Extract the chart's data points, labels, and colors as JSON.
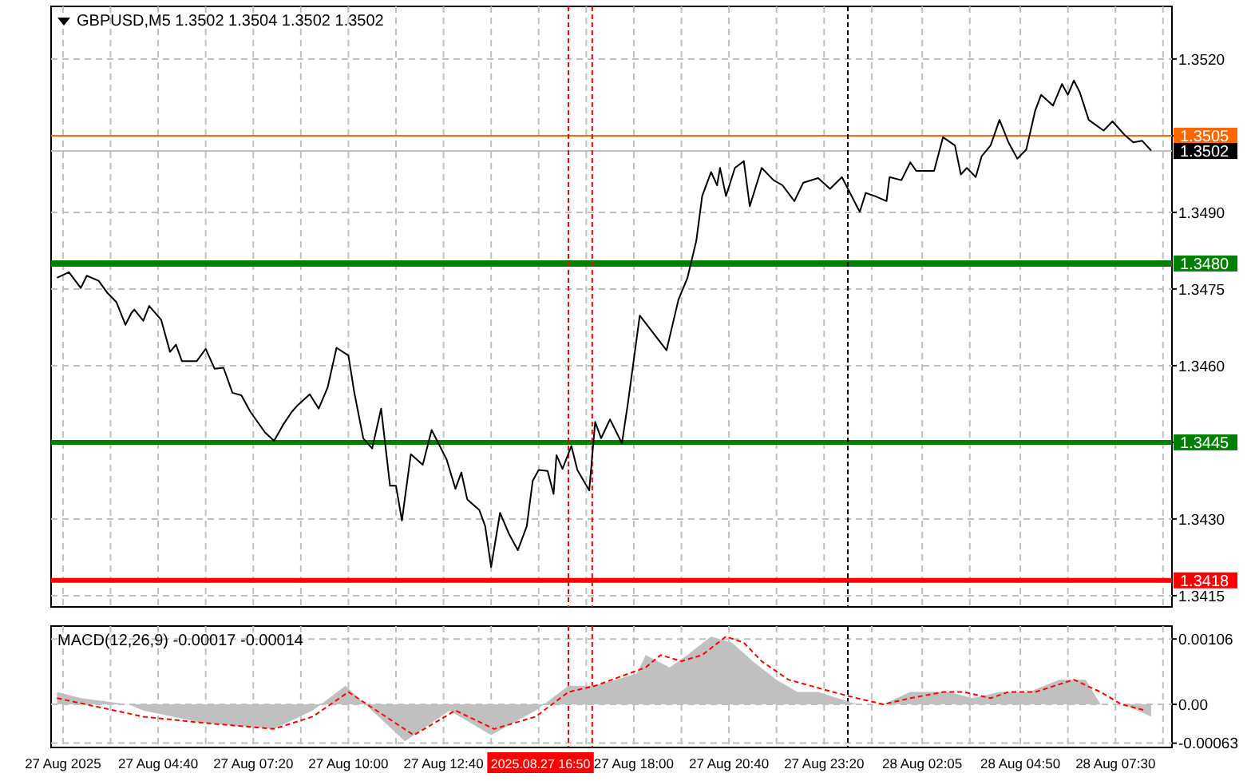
{
  "chart_data": [
    {
      "type": "line",
      "title": "GBPUSD,M5 1.3502 1.3504 1.3502 1.3502",
      "tick_labels": "y",
      "grid": true,
      "xlim": [
        "2025-08-27T01:40",
        "2025-08-28T09:05"
      ],
      "ylim": [
        1.34128,
        1.35303
      ],
      "xticks": [
        {
          "value": "2025-08-27T02:00",
          "label": null
        },
        {
          "value": "2025-08-27T03:20",
          "label": null
        },
        {
          "value": "2025-08-27T04:40",
          "label": null
        },
        {
          "value": "2025-08-27T06:00",
          "label": null
        },
        {
          "value": "2025-08-27T07:20",
          "label": null
        },
        {
          "value": "2025-08-27T08:40",
          "label": null
        },
        {
          "value": "2025-08-27T10:00",
          "label": null
        },
        {
          "value": "2025-08-27T11:20",
          "label": null
        },
        {
          "value": "2025-08-27T12:40",
          "label": null
        },
        {
          "value": "2025-08-27T14:00",
          "label": null
        },
        {
          "value": "2025-08-27T15:20",
          "label": null
        },
        {
          "value": "2025-08-27T16:40",
          "label": null
        },
        {
          "value": "2025-08-27T18:00",
          "label": null
        },
        {
          "value": "2025-08-27T19:20",
          "label": null
        },
        {
          "value": "2025-08-27T20:40",
          "label": null
        },
        {
          "value": "2025-08-27T22:00",
          "label": null
        },
        {
          "value": "2025-08-27T23:20",
          "label": null
        },
        {
          "value": "2025-08-28T00:40",
          "label": null
        },
        {
          "value": "2025-08-28T02:05",
          "label": null
        },
        {
          "value": "2025-08-28T03:25",
          "label": null
        },
        {
          "value": "2025-08-28T04:50",
          "label": null
        },
        {
          "value": "2025-08-28T06:10",
          "label": null
        },
        {
          "value": "2025-08-28T07:30",
          "label": null
        },
        {
          "value": "2025-08-28T08:50",
          "label": null
        }
      ],
      "yticks": [
        {
          "value": 1.3415,
          "label": "1.3415"
        },
        {
          "value": 1.343,
          "label": "1.3430"
        },
        {
          "value": 1.3445,
          "label": null
        },
        {
          "value": 1.346,
          "label": "1.3460"
        },
        {
          "value": 1.3475,
          "label": "1.3475"
        },
        {
          "value": 1.349,
          "label": "1.3490"
        },
        {
          "value": 1.3505,
          "label": null
        },
        {
          "value": 1.352,
          "label": "1.3520"
        }
      ],
      "ref_lines": [
        {
          "axis": "y",
          "value": 1.3505,
          "label": "1.3505",
          "color": "#ff6600"
        },
        {
          "axis": "y",
          "value": 1.3502,
          "label": "1.3502",
          "color": "#c0c0c0"
        },
        {
          "axis": "y",
          "value": 1.348,
          "label": "1.3480",
          "color": "#008000"
        },
        {
          "axis": "y",
          "value": 1.3445,
          "label": "1.3445",
          "color": "#008000"
        },
        {
          "axis": "y",
          "value": 1.3418,
          "label": "1.3418",
          "color": "#ff0000"
        },
        {
          "axis": "x",
          "value": "2025-08-27T16:10",
          "color": "#ff0000",
          "line_style": "dashed"
        },
        {
          "axis": "x",
          "value": "2025-08-27T16:50",
          "color": "#ff0000",
          "line_style": "dashed"
        },
        {
          "axis": "x",
          "value": "2025-08-28T00:00",
          "color": "#000000",
          "line_style": "dashed"
        }
      ],
      "series": [
        {
          "color": "#000000",
          "x": [
            "2025-08-27T01:50",
            "2025-08-27T02:10",
            "2025-08-27T02:30",
            "2025-08-27T02:40",
            "2025-08-27T03:00",
            "2025-08-27T03:15",
            "2025-08-27T03:30",
            "2025-08-27T03:45",
            "2025-08-27T03:55",
            "2025-08-27T04:00",
            "2025-08-27T04:15",
            "2025-08-27T04:25",
            "2025-08-27T04:45",
            "2025-08-27T05:00",
            "2025-08-27T05:10",
            "2025-08-27T05:20",
            "2025-08-27T05:45",
            "2025-08-27T06:00",
            "2025-08-27T06:15",
            "2025-08-27T06:30",
            "2025-08-27T06:45",
            "2025-08-27T07:00",
            "2025-08-27T07:15",
            "2025-08-27T07:40",
            "2025-08-27T07:55",
            "2025-08-27T08:10",
            "2025-08-27T08:25",
            "2025-08-27T08:35",
            "2025-08-27T08:55",
            "2025-08-27T09:10",
            "2025-08-27T09:25",
            "2025-08-27T09:40",
            "2025-08-27T10:00",
            "2025-08-27T10:10",
            "2025-08-27T10:25",
            "2025-08-27T10:40",
            "2025-08-27T10:55",
            "2025-08-27T11:10",
            "2025-08-27T11:20",
            "2025-08-27T11:30",
            "2025-08-27T11:45",
            "2025-08-27T12:05",
            "2025-08-27T12:20",
            "2025-08-27T12:45",
            "2025-08-27T13:00",
            "2025-08-27T13:10",
            "2025-08-27T13:20",
            "2025-08-27T13:40",
            "2025-08-27T13:50",
            "2025-08-27T14:00",
            "2025-08-27T14:15",
            "2025-08-27T14:30",
            "2025-08-27T14:45",
            "2025-08-27T15:00",
            "2025-08-27T15:10",
            "2025-08-27T15:20",
            "2025-08-27T15:35",
            "2025-08-27T15:45",
            "2025-08-27T15:50",
            "2025-08-27T16:00",
            "2025-08-27T16:15",
            "2025-08-27T16:25",
            "2025-08-27T16:45",
            "2025-08-27T16:55",
            "2025-08-27T17:05",
            "2025-08-27T17:20",
            "2025-08-27T17:40",
            "2025-08-27T17:50",
            "2025-08-27T18:10",
            "2025-08-27T18:55",
            "2025-08-27T19:15",
            "2025-08-27T19:30",
            "2025-08-27T19:45",
            "2025-08-27T19:55",
            "2025-08-27T20:10",
            "2025-08-27T20:20",
            "2025-08-27T20:25",
            "2025-08-27T20:35",
            "2025-08-27T20:50",
            "2025-08-27T21:05",
            "2025-08-27T21:15",
            "2025-08-27T21:35",
            "2025-08-27T21:55",
            "2025-08-27T22:10",
            "2025-08-27T22:30",
            "2025-08-27T22:45",
            "2025-08-27T23:10",
            "2025-08-27T23:30",
            "2025-08-27T23:50",
            "2025-08-28T00:15",
            "2025-08-28T00:20",
            "2025-08-28T00:30",
            "2025-08-28T00:45",
            "2025-08-28T01:05",
            "2025-08-28T01:10",
            "2025-08-28T01:30",
            "2025-08-28T01:45",
            "2025-08-28T01:55",
            "2025-08-28T02:25",
            "2025-08-28T02:40",
            "2025-08-28T03:00",
            "2025-08-28T03:10",
            "2025-08-28T03:20",
            "2025-08-28T03:35",
            "2025-08-28T03:45",
            "2025-08-28T04:00",
            "2025-08-28T04:15",
            "2025-08-28T04:30",
            "2025-08-28T04:45",
            "2025-08-28T05:00",
            "2025-08-28T05:15",
            "2025-08-28T05:25",
            "2025-08-28T05:45",
            "2025-08-28T06:00",
            "2025-08-28T06:10",
            "2025-08-28T06:20",
            "2025-08-28T06:30",
            "2025-08-28T06:45",
            "2025-08-28T07:10",
            "2025-08-28T07:25",
            "2025-08-28T07:45",
            "2025-08-28T08:00",
            "2025-08-28T08:15",
            "2025-08-28T08:30"
          ],
          "values": [
            1.34772,
            1.34783,
            1.34752,
            1.34776,
            1.34766,
            1.34742,
            1.34724,
            1.3468,
            1.34703,
            1.3471,
            1.34688,
            1.34717,
            1.3469,
            1.34627,
            1.34641,
            1.34609,
            1.34609,
            1.34633,
            1.34594,
            1.34596,
            1.34547,
            1.34542,
            1.3451,
            1.34469,
            1.34453,
            1.34484,
            1.3451,
            1.34523,
            1.34544,
            1.34516,
            1.34557,
            1.34635,
            1.3462,
            1.34547,
            1.34458,
            1.34438,
            1.34516,
            1.34365,
            1.34365,
            1.34297,
            1.34427,
            1.34406,
            1.34474,
            1.34417,
            1.34359,
            1.34391,
            1.34338,
            1.34318,
            1.34286,
            1.34206,
            1.34312,
            1.34271,
            1.34239,
            1.34286,
            1.34375,
            1.34396,
            1.34394,
            1.34349,
            1.34425,
            1.34398,
            1.34443,
            1.34396,
            1.34356,
            1.3449,
            1.34458,
            1.34495,
            1.34448,
            1.34526,
            1.34698,
            1.3463,
            1.34729,
            1.34771,
            1.34844,
            1.34932,
            1.34979,
            1.34953,
            1.34987,
            1.34932,
            1.34987,
            1.35,
            1.34912,
            1.34987,
            1.34963,
            1.34953,
            1.34922,
            1.34958,
            1.34967,
            1.34946,
            1.34969,
            1.34912,
            1.34901,
            1.34938,
            1.34932,
            1.34922,
            1.34969,
            1.34963,
            1.34998,
            1.34981,
            1.34981,
            1.35047,
            1.35031,
            1.34974,
            1.34987,
            1.34969,
            1.3501,
            1.35031,
            1.35081,
            1.35037,
            1.35005,
            1.35023,
            1.35099,
            1.3513,
            1.35109,
            1.35151,
            1.3513,
            1.35158,
            1.35135,
            1.35081,
            1.3506,
            1.35078,
            1.35052,
            1.35037,
            1.3504,
            1.35021
          ]
        }
      ]
    },
    {
      "type": "area",
      "title": "MACD(12,26,9) -0.00017 -0.00014",
      "grid": true,
      "line_style": "dashed",
      "xlim": [
        "2025-08-27T01:40",
        "2025-08-28T09:05"
      ],
      "ylim": [
        -0.0007,
        0.00127
      ],
      "xticks": [
        {
          "value": "2025-08-27T02:00",
          "label": "27 Aug 2025"
        },
        {
          "value": "2025-08-27T03:20",
          "label": null
        },
        {
          "value": "2025-08-27T04:40",
          "label": "27 Aug 04:40"
        },
        {
          "value": "2025-08-27T06:00",
          "label": null
        },
        {
          "value": "2025-08-27T07:20",
          "label": "27 Aug 07:20"
        },
        {
          "value": "2025-08-27T08:40",
          "label": null
        },
        {
          "value": "2025-08-27T10:00",
          "label": "27 Aug 10:00"
        },
        {
          "value": "2025-08-27T11:20",
          "label": null
        },
        {
          "value": "2025-08-27T12:40",
          "label": "27 Aug 12:40"
        },
        {
          "value": "2025-08-27T14:00",
          "label": null
        },
        {
          "value": "2025-08-27T15:20",
          "label": null
        },
        {
          "value": "2025-08-27T16:40",
          "label": null
        },
        {
          "value": "2025-08-27T18:00",
          "label": "27 Aug 18:00"
        },
        {
          "value": "2025-08-27T19:20",
          "label": null
        },
        {
          "value": "2025-08-27T20:40",
          "label": "27 Aug 20:40"
        },
        {
          "value": "2025-08-27T22:00",
          "label": null
        },
        {
          "value": "2025-08-27T23:20",
          "label": "27 Aug 23:20"
        },
        {
          "value": "2025-08-28T00:40",
          "label": null
        },
        {
          "value": "2025-08-28T02:05",
          "label": "28 Aug 02:05"
        },
        {
          "value": "2025-08-28T03:25",
          "label": null
        },
        {
          "value": "2025-08-28T04:50",
          "label": "28 Aug 04:50"
        },
        {
          "value": "2025-08-28T06:10",
          "label": null
        },
        {
          "value": "2025-08-28T07:30",
          "label": "28 Aug 07:30"
        },
        {
          "value": "2025-08-28T08:50",
          "label": null
        }
      ],
      "yticks": [
        {
          "value": 0.00106,
          "label": "0.00106"
        },
        {
          "value": 0,
          "label": "0.00"
        },
        {
          "value": -0.00063,
          "label": "-0.00063"
        }
      ],
      "ref_lines": [
        {
          "axis": "x",
          "value": "2025-08-27T16:10",
          "color": "#ff0000",
          "line_style": "dashed"
        },
        {
          "axis": "x",
          "value": "2025-08-27T16:50",
          "label": "2025.08.27 16:50",
          "color": "#ff0000",
          "line_style": "dashed"
        },
        {
          "axis": "x",
          "value": "2025-08-28T00:00",
          "color": "#000000",
          "line_style": "dashed"
        }
      ],
      "series": [
        {
          "color": "#c0c0c0",
          "x": [
            "2025-08-27T01:50",
            "2025-08-27T02:30",
            "2025-08-27T03:50",
            "2025-08-27T04:15",
            "2025-08-27T05:55",
            "2025-08-27T07:55",
            "2025-08-27T09:00",
            "2025-08-27T09:55",
            "2025-08-27T11:35",
            "2025-08-27T12:50",
            "2025-08-27T14:00",
            "2025-08-27T15:15",
            "2025-08-27T16:10",
            "2025-08-27T16:55",
            "2025-08-27T18:05",
            "2025-08-27T18:20",
            "2025-08-27T19:00",
            "2025-08-27T19:30",
            "2025-08-27T20:10",
            "2025-08-27T20:45",
            "2025-08-27T21:20",
            "2025-08-27T22:00",
            "2025-08-27T22:35",
            "2025-08-27T23:10",
            "2025-08-28T00:15",
            "2025-08-28T01:00",
            "2025-08-28T01:45",
            "2025-08-28T02:50",
            "2025-08-28T03:30",
            "2025-08-28T04:15",
            "2025-08-28T05:05",
            "2025-08-28T05:55",
            "2025-08-28T06:40",
            "2025-08-28T07:05",
            "2025-08-28T07:45",
            "2025-08-28T08:30"
          ],
          "values": [
            0.0002,
            0.0001,
            0,
            -0.0001,
            -0.0003,
            -0.0004,
            -0.0001,
            0.0003,
            -0.0006,
            -0.0001,
            -0.0005,
            -0.0001,
            0.0003,
            0.0003,
            0.0005,
            0.0008,
            0.0006,
            0.0008,
            0.0011,
            0.001,
            0.0007,
            0.0004,
            0.0002,
            0.0002,
            0,
            0,
            0.0002,
            0.0002,
            0.0001,
            0.0002,
            0.0002,
            0.0004,
            0.0004,
            0,
            0,
            -0.0002
          ]
        },
        {
          "type": "line",
          "color": "#ff0000",
          "x": [
            "2025-08-27T01:50",
            "2025-08-27T04:15",
            "2025-08-27T05:55",
            "2025-08-27T07:55",
            "2025-08-27T09:00",
            "2025-08-27T10:00",
            "2025-08-27T11:50",
            "2025-08-27T13:00",
            "2025-08-27T14:05",
            "2025-08-27T15:15",
            "2025-08-27T16:10",
            "2025-08-27T16:55",
            "2025-08-27T18:20",
            "2025-08-27T18:45",
            "2025-08-27T19:20",
            "2025-08-27T19:55",
            "2025-08-27T20:35",
            "2025-08-27T21:05",
            "2025-08-27T21:35",
            "2025-08-27T22:20",
            "2025-08-27T23:35",
            "2025-08-28T00:15",
            "2025-08-28T01:00",
            "2025-08-28T01:45",
            "2025-08-28T02:40",
            "2025-08-28T03:15",
            "2025-08-28T04:00",
            "2025-08-28T04:30",
            "2025-08-28T05:15",
            "2025-08-28T06:20",
            "2025-08-28T07:05",
            "2025-08-28T07:40",
            "2025-08-28T08:20"
          ],
          "values": [
            0.0001,
            -0.0002,
            -0.0003,
            -0.0004,
            -0.0002,
            0.0002,
            -0.0005,
            -0.0001,
            -0.0004,
            -0.0002,
            0.0002,
            0.0003,
            0.0006,
            0.0008,
            0.0007,
            0.0008,
            0.0011,
            0.001,
            0.0007,
            0.0004,
            0.0002,
            0.0001,
            0,
            0.0001,
            0.0002,
            0.0002,
            0.0001,
            0.0002,
            0.0002,
            0.0004,
            0.0002,
            0,
            -0.0001
          ]
        }
      ]
    }
  ]
}
